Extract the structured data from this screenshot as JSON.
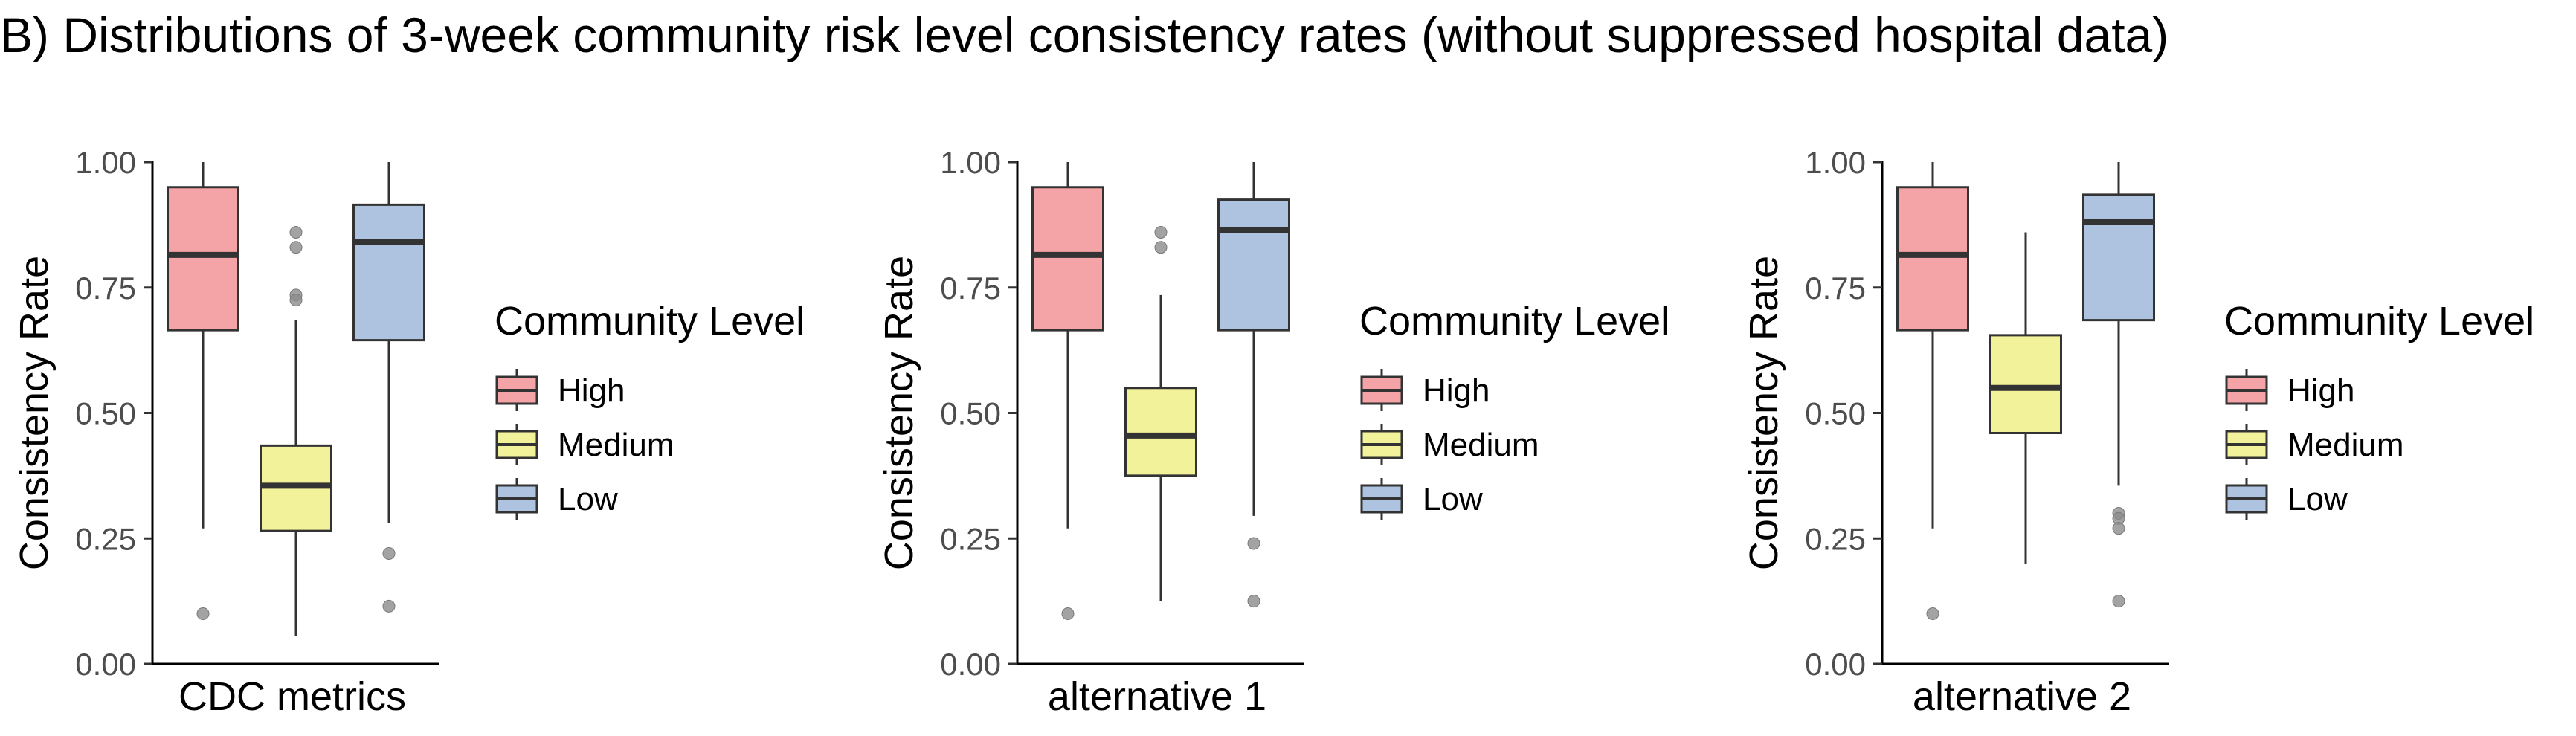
{
  "title": "B) Distributions of 3-week community risk level consistency rates (without suppressed hospital data)",
  "chart_data": {
    "type": "box",
    "title": "B) Distributions of 3-week community risk level consistency rates (without suppressed hospital data)",
    "ylabel": "Consistency Rate",
    "ylim": [
      0,
      1
    ],
    "yticks": [
      "0.00",
      "0.25",
      "0.50",
      "0.75",
      "1.00"
    ],
    "ytick_values": [
      0,
      0.25,
      0.5,
      0.75,
      1.0
    ],
    "grid": false,
    "legend": {
      "title": "Community Level",
      "placement": "right",
      "entries": [
        {
          "label": "High",
          "color": "#f4a3a6"
        },
        {
          "label": "Medium",
          "color": "#f2f29a"
        },
        {
          "label": "Low",
          "color": "#aec3e0"
        }
      ]
    },
    "panels": [
      {
        "xlabel": "CDC metrics",
        "series": [
          {
            "name": "High",
            "color": "#f4a3a6",
            "whisker_low": 0.27,
            "q1": 0.665,
            "median": 0.815,
            "q3": 0.95,
            "whisker_high": 1.0,
            "outliers": [
              0.1
            ]
          },
          {
            "name": "Medium",
            "color": "#f2f29a",
            "whisker_low": 0.055,
            "q1": 0.265,
            "median": 0.355,
            "q3": 0.435,
            "whisker_high": 0.685,
            "outliers": [
              0.86,
              0.83,
              0.735,
              0.725
            ]
          },
          {
            "name": "Low",
            "color": "#aec3e0",
            "whisker_low": 0.28,
            "q1": 0.645,
            "median": 0.84,
            "q3": 0.915,
            "whisker_high": 1.0,
            "outliers": [
              0.22,
              0.115
            ]
          }
        ]
      },
      {
        "xlabel": "alternative 1",
        "series": [
          {
            "name": "High",
            "color": "#f4a3a6",
            "whisker_low": 0.27,
            "q1": 0.665,
            "median": 0.815,
            "q3": 0.95,
            "whisker_high": 1.0,
            "outliers": [
              0.1
            ]
          },
          {
            "name": "Medium",
            "color": "#f2f29a",
            "whisker_low": 0.125,
            "q1": 0.375,
            "median": 0.455,
            "q3": 0.55,
            "whisker_high": 0.735,
            "outliers": [
              0.86,
              0.83
            ]
          },
          {
            "name": "Low",
            "color": "#aec3e0",
            "whisker_low": 0.295,
            "q1": 0.665,
            "median": 0.865,
            "q3": 0.925,
            "whisker_high": 1.0,
            "outliers": [
              0.24,
              0.125
            ]
          }
        ]
      },
      {
        "xlabel": "alternative 2",
        "series": [
          {
            "name": "High",
            "color": "#f4a3a6",
            "whisker_low": 0.27,
            "q1": 0.665,
            "median": 0.815,
            "q3": 0.95,
            "whisker_high": 1.0,
            "outliers": [
              0.1
            ]
          },
          {
            "name": "Medium",
            "color": "#f2f29a",
            "whisker_low": 0.2,
            "q1": 0.46,
            "median": 0.55,
            "q3": 0.655,
            "whisker_high": 0.86,
            "outliers": []
          },
          {
            "name": "Low",
            "color": "#aec3e0",
            "whisker_low": 0.355,
            "q1": 0.685,
            "median": 0.88,
            "q3": 0.935,
            "whisker_high": 1.0,
            "outliers": [
              0.3,
              0.29,
              0.27,
              0.125
            ]
          }
        ]
      }
    ]
  }
}
